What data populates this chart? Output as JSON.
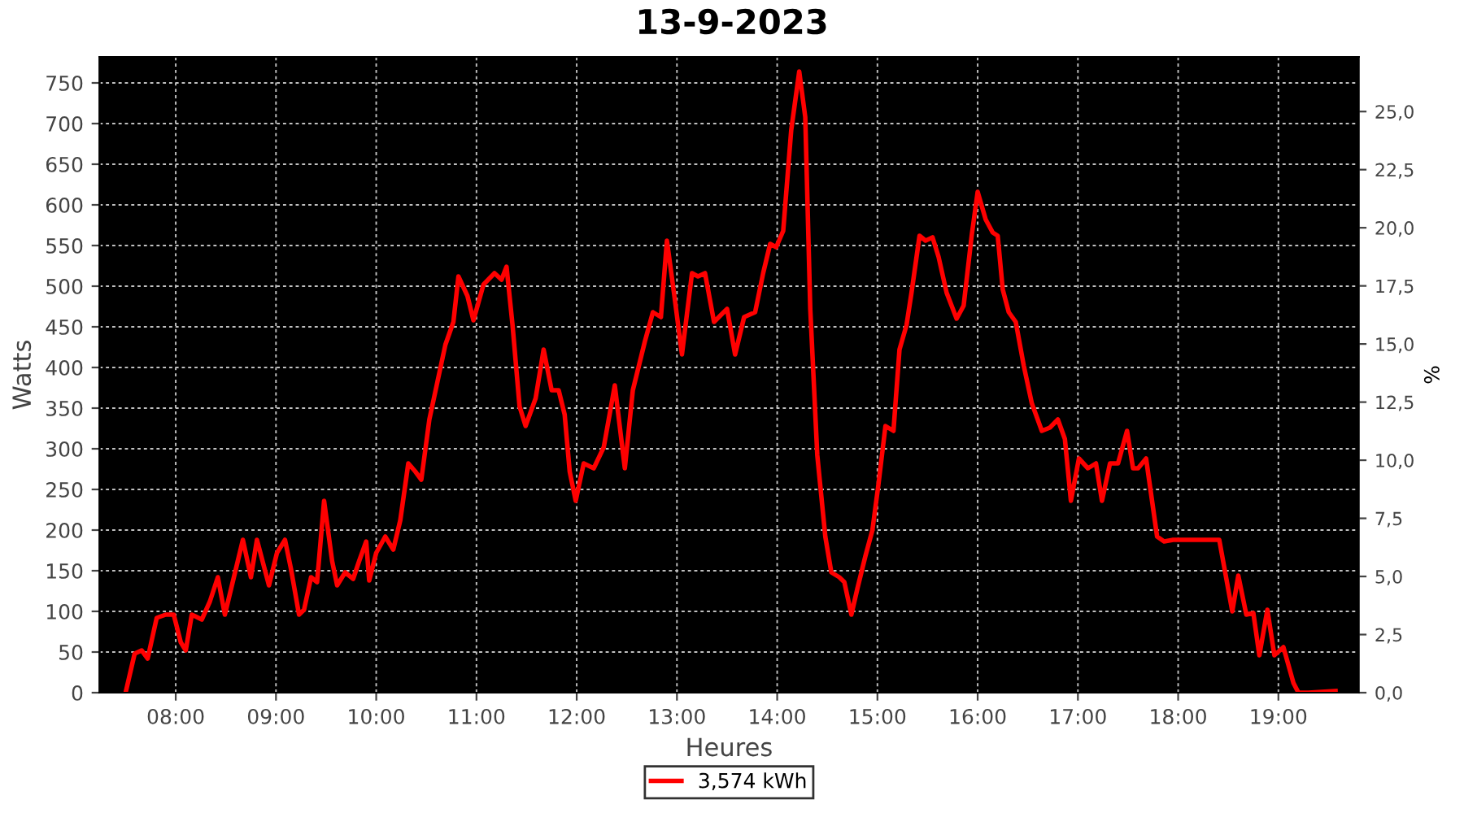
{
  "chart_data": {
    "type": "line",
    "title": "13-9-2023",
    "xlabel": "Heures",
    "ylabel": "Watts",
    "y2label": "%",
    "xlim": [
      7.24,
      19.8
    ],
    "ylim": [
      0,
      782
    ],
    "y2lim": [
      0,
      27.35
    ],
    "xticks": [
      {
        "value": 8,
        "label": "08:00"
      },
      {
        "value": 9,
        "label": "09:00"
      },
      {
        "value": 10,
        "label": "10:00"
      },
      {
        "value": 11,
        "label": "11:00"
      },
      {
        "value": 12,
        "label": "12:00"
      },
      {
        "value": 13,
        "label": "13:00"
      },
      {
        "value": 14,
        "label": "14:00"
      },
      {
        "value": 15,
        "label": "15:00"
      },
      {
        "value": 16,
        "label": "16:00"
      },
      {
        "value": 17,
        "label": "17:00"
      },
      {
        "value": 18,
        "label": "18:00"
      },
      {
        "value": 19,
        "label": "19:00"
      }
    ],
    "yticks": [
      0,
      50,
      100,
      150,
      200,
      250,
      300,
      350,
      400,
      450,
      500,
      550,
      600,
      650,
      700,
      750
    ],
    "y2ticks": [
      {
        "value": 0,
        "label": "0,0"
      },
      {
        "value": 2.5,
        "label": "2,5"
      },
      {
        "value": 5,
        "label": "5,0"
      },
      {
        "value": 7.5,
        "label": "7,5"
      },
      {
        "value": 10,
        "label": "10,0"
      },
      {
        "value": 12.5,
        "label": "12,5"
      },
      {
        "value": 15,
        "label": "15,0"
      },
      {
        "value": 17.5,
        "label": "17,5"
      },
      {
        "value": 20,
        "label": "20,0"
      },
      {
        "value": 22.5,
        "label": "22,5"
      },
      {
        "value": 25,
        "label": "25,0"
      }
    ],
    "grid": true,
    "legend": "bottom",
    "line_style": "solid",
    "marker": "none",
    "series": [
      {
        "name": "3,574 kWh",
        "color": "#ff0000",
        "x": [
          7.5,
          7.59,
          7.66,
          7.72,
          7.81,
          7.9,
          7.98,
          8.05,
          8.1,
          8.16,
          8.26,
          8.34,
          8.42,
          8.49,
          8.58,
          8.67,
          8.75,
          8.81,
          8.93,
          9.01,
          9.09,
          9.15,
          9.23,
          9.28,
          9.35,
          9.41,
          9.48,
          9.56,
          9.61,
          9.69,
          9.77,
          9.83,
          9.9,
          9.93,
          10.0,
          10.09,
          10.17,
          10.24,
          10.32,
          10.39,
          10.45,
          10.53,
          10.61,
          10.69,
          10.77,
          10.82,
          10.91,
          10.97,
          11.07,
          11.18,
          11.25,
          11.3,
          11.36,
          11.43,
          11.49,
          11.59,
          11.67,
          11.75,
          11.82,
          11.88,
          11.93,
          11.99,
          12.07,
          12.17,
          12.27,
          12.38,
          12.48,
          12.56,
          12.68,
          12.76,
          12.84,
          12.9,
          12.97,
          13.05,
          13.15,
          13.21,
          13.28,
          13.37,
          13.45,
          13.5,
          13.58,
          13.67,
          13.78,
          13.86,
          13.93,
          13.99,
          14.06,
          14.14,
          14.22,
          14.28,
          14.33,
          14.4,
          14.48,
          14.54,
          14.62,
          14.67,
          14.74,
          14.8,
          14.88,
          14.95,
          15.01,
          15.08,
          15.16,
          15.22,
          15.29,
          15.34,
          15.42,
          15.48,
          15.55,
          15.61,
          15.69,
          15.79,
          15.86,
          15.94,
          16.0,
          16.08,
          16.15,
          16.2,
          16.25,
          16.31,
          16.38,
          16.46,
          16.54,
          16.64,
          16.72,
          16.8,
          16.87,
          16.93,
          17.01,
          17.1,
          17.18,
          17.24,
          17.32,
          17.4,
          17.49,
          17.55,
          17.6,
          17.68,
          17.79,
          17.86,
          17.95,
          18.08,
          18.41,
          18.54,
          18.6,
          18.68,
          18.75,
          18.81,
          18.89,
          18.96,
          19.05,
          19.15,
          19.2,
          19.3,
          19.57
        ],
        "values": [
          0,
          48,
          52,
          42,
          92,
          96,
          96,
          62,
          52,
          96,
          90,
          112,
          142,
          96,
          142,
          188,
          142,
          188,
          132,
          172,
          188,
          152,
          96,
          102,
          142,
          136,
          236,
          162,
          132,
          148,
          140,
          162,
          186,
          138,
          172,
          192,
          176,
          212,
          282,
          272,
          262,
          336,
          382,
          428,
          456,
          512,
          488,
          458,
          502,
          516,
          508,
          524,
          452,
          352,
          328,
          362,
          422,
          372,
          372,
          342,
          272,
          236,
          282,
          276,
          302,
          378,
          276,
          372,
          432,
          468,
          462,
          556,
          492,
          416,
          516,
          512,
          516,
          456,
          466,
          472,
          416,
          462,
          468,
          516,
          552,
          548,
          568,
          692,
          764,
          708,
          472,
          292,
          192,
          148,
          142,
          136,
          96,
          128,
          168,
          200,
          256,
          328,
          322,
          422,
          452,
          492,
          562,
          556,
          560,
          536,
          492,
          460,
          476,
          562,
          616,
          582,
          566,
          562,
          496,
          468,
          456,
          402,
          356,
          322,
          326,
          336,
          312,
          236,
          288,
          276,
          282,
          236,
          282,
          282,
          322,
          276,
          276,
          288,
          192,
          186,
          188,
          188,
          188,
          100,
          144,
          96,
          98,
          46,
          102,
          46,
          56,
          12,
          0,
          0,
          2
        ]
      }
    ]
  }
}
